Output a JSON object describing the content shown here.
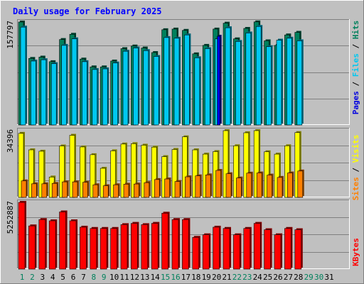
{
  "chart_data": {
    "type": "bar",
    "title": "Daily usage for February 2025",
    "days": [
      "1",
      "2",
      "3",
      "4",
      "5",
      "6",
      "7",
      "8",
      "9",
      "10",
      "11",
      "12",
      "13",
      "14",
      "15",
      "16",
      "17",
      "18",
      "19",
      "20",
      "21",
      "22",
      "23",
      "24",
      "25",
      "26",
      "27",
      "28",
      "29",
      "30",
      "31"
    ],
    "weekend_days": [
      "1",
      "2",
      "8",
      "9",
      "15",
      "16",
      "22",
      "23",
      "29",
      "30"
    ],
    "hits_files_pages_panel": {
      "max_label": "157797",
      "ymax": 157797,
      "ylabel_parts": [
        "Pages",
        "Files",
        "Hits"
      ],
      "series": [
        {
          "name": "Hits",
          "color": "#00805c",
          "values": [
            157797,
            102000,
            104000,
            97000,
            131000,
            139000,
            101000,
            89000,
            89000,
            98000,
            117000,
            121000,
            118000,
            111000,
            146000,
            147000,
            145000,
            109000,
            122000,
            147000,
            156000,
            132000,
            148000,
            158000,
            129000,
            122000,
            138000,
            142000,
            0,
            0,
            0
          ]
        },
        {
          "name": "Files",
          "color": "#00c8f0",
          "values": [
            150000,
            98000,
            100000,
            94000,
            122000,
            132000,
            97000,
            85000,
            86000,
            95000,
            113000,
            118000,
            114000,
            105000,
            134000,
            133000,
            138000,
            103000,
            117000,
            132000,
            149000,
            128000,
            141000,
            151000,
            120000,
            130000,
            133000,
            129000,
            0,
            0,
            0
          ]
        },
        {
          "name": "Pages",
          "color": "#0000e0",
          "values": [
            0,
            0,
            0,
            0,
            0,
            0,
            0,
            0,
            0,
            0,
            0,
            0,
            0,
            0,
            0,
            0,
            0,
            0,
            0,
            136000,
            0,
            0,
            0,
            0,
            0,
            0,
            0,
            0,
            0,
            0,
            0
          ]
        }
      ]
    },
    "visits_sites_panel": {
      "max_label": "34396",
      "ymax": 34396,
      "ylabel_parts": [
        "Sites",
        "Visits"
      ],
      "series": [
        {
          "name": "Visits",
          "color": "#ffff00",
          "values": [
            33000,
            24500,
            23800,
            10500,
            26500,
            32000,
            26000,
            22000,
            15000,
            24000,
            27500,
            27700,
            26900,
            25900,
            21000,
            24700,
            31200,
            24500,
            22300,
            23600,
            34396,
            26600,
            33300,
            34396,
            23500,
            22300,
            26600,
            33400,
            0,
            0,
            0
          ]
        },
        {
          "name": "Sites",
          "color": "#ff8000",
          "values": [
            8500,
            7000,
            7000,
            7200,
            8000,
            8000,
            7800,
            6500,
            6000,
            6500,
            6800,
            6900,
            7600,
            9200,
            9500,
            8200,
            10600,
            11100,
            11600,
            13900,
            12200,
            10000,
            12500,
            12600,
            11500,
            10300,
            12600,
            13600,
            0,
            0,
            0
          ]
        }
      ]
    },
    "kbytes_panel": {
      "max_label": "5252887",
      "ymax": 5252887,
      "ylabel_parts": [
        "KBytes"
      ],
      "series": [
        {
          "name": "KBytes",
          "color": "#ff0000",
          "values": [
            5252887,
            3400000,
            3900000,
            3800000,
            4500000,
            3800000,
            3300000,
            3200000,
            3200000,
            3200000,
            3500000,
            3600000,
            3500000,
            3600000,
            4400000,
            3900000,
            3900000,
            2500000,
            2700000,
            3300000,
            3200000,
            2700000,
            3200000,
            3600000,
            3100000,
            2700000,
            3200000,
            3100000,
            0,
            0,
            0
          ]
        }
      ]
    }
  }
}
